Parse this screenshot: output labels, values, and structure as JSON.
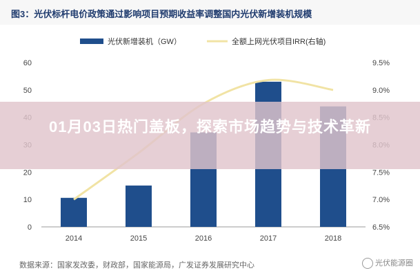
{
  "chart_data": {
    "type": "bar+line",
    "title": "图3：光伏标杆电价政策通过影响项目预期收益率调整国内光伏新增装机规模",
    "categories": [
      "2014",
      "2015",
      "2016",
      "2017",
      "2018"
    ],
    "series": [
      {
        "name": "光伏新增装机（GW）",
        "type": "bar",
        "axis": "left",
        "values": [
          10.6,
          15.1,
          34.5,
          53.0,
          44.0
        ]
      },
      {
        "name": "全额上网光伏项目IRR(右轴)",
        "type": "line",
        "axis": "right",
        "values": [
          7.0,
          7.85,
          8.75,
          9.18,
          9.0
        ]
      }
    ],
    "y_left": {
      "ylim": [
        0,
        60
      ],
      "ticks": [
        "0",
        "10",
        "20",
        "30",
        "40",
        "50",
        "60"
      ]
    },
    "y_right": {
      "ylim": [
        6.5,
        9.5
      ],
      "ticks": [
        "6.5%",
        "7.0%",
        "7.5%",
        "8.0%",
        "8.5%",
        "9.0%",
        "9.5%"
      ]
    },
    "grid": false,
    "legend_position": "top",
    "colors": {
      "bar": "#1f4e8c",
      "line": "#f1e3a4",
      "header_text": "#1f3b6e"
    }
  },
  "overlay": {
    "headline": "01月03日热门盖板，探索市场趋势与技术革新"
  },
  "footer": {
    "source": "数据来源：国家发改委，财政部，国家能源局，广发证券发展研究中心",
    "watermark": "光伏能源圈"
  }
}
